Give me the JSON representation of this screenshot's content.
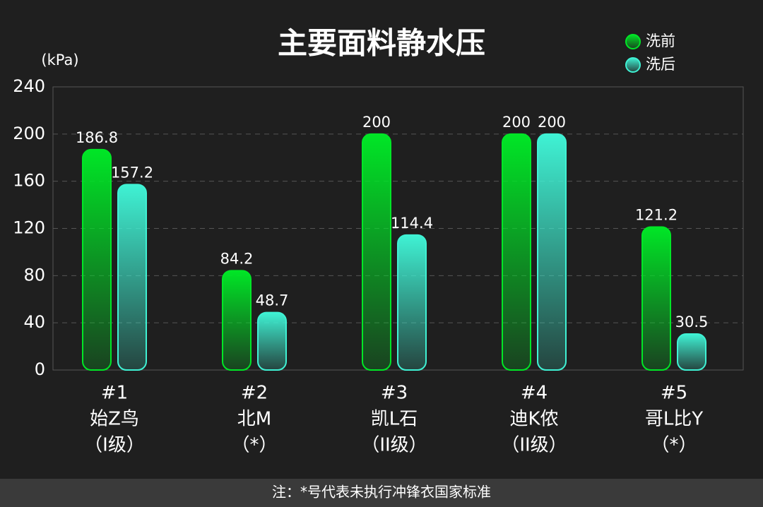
{
  "chart_data": {
    "type": "bar",
    "title": "主要面料静水压",
    "ylabel": "(kPa)",
    "categories": [
      [
        "#1",
        "始Z鸟",
        "（I级）"
      ],
      [
        "#2",
        "北M",
        "（*）"
      ],
      [
        "#3",
        "凯L石",
        "（II级）"
      ],
      [
        "#4",
        "迪K侬",
        "（II级）"
      ],
      [
        "#5",
        "哥L比Y",
        "（*）"
      ]
    ],
    "series": [
      {
        "name": "洗前",
        "color": "#00e626",
        "values": [
          186.8,
          84.2,
          200,
          200,
          121.2
        ]
      },
      {
        "name": "洗后",
        "color": "#3ff2d4",
        "values": [
          157.2,
          48.7,
          114.4,
          200,
          30.5
        ]
      }
    ],
    "ylim": [
      0,
      240
    ],
    "yticks": [
      0,
      40,
      80,
      120,
      160,
      200,
      240
    ],
    "grid": true,
    "legend": "top-right",
    "note": "注：*号代表未执行冲锋衣国家标准"
  }
}
